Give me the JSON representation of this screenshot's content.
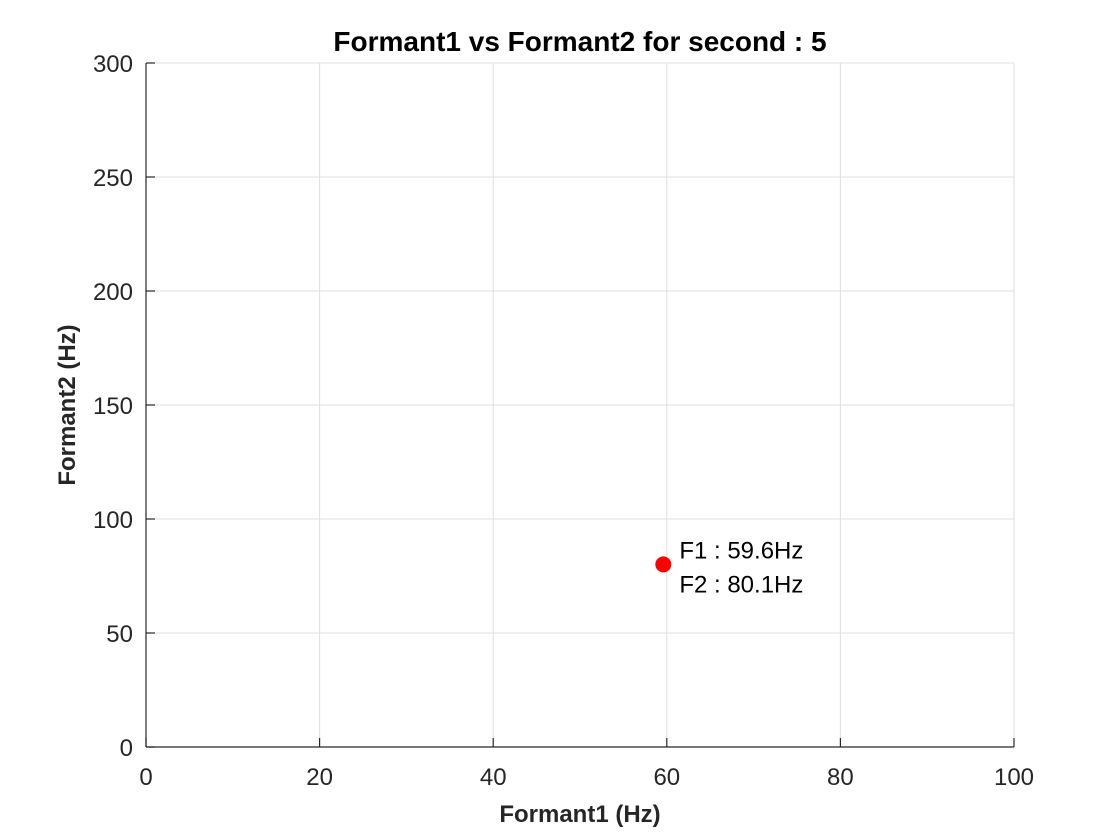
{
  "chart_data": {
    "type": "scatter",
    "title": "Formant1 vs Formant2 for second : 5",
    "xlabel": "Formant1 (Hz)",
    "ylabel": "Formant2 (Hz)",
    "xlim": [
      0,
      100
    ],
    "ylim": [
      0,
      300
    ],
    "xticks": [
      0,
      20,
      40,
      60,
      80,
      100
    ],
    "yticks": [
      0,
      50,
      100,
      150,
      200,
      250,
      300
    ],
    "grid": true,
    "points": [
      {
        "x": 59.6,
        "y": 80.1,
        "color": "#ff0000"
      }
    ],
    "annotations": [
      {
        "text": "F1 : 59.6Hz",
        "x": 59.6,
        "y": 80.1
      },
      {
        "text": "F2 : 80.1Hz",
        "x": 59.6,
        "y": 80.1
      }
    ]
  }
}
